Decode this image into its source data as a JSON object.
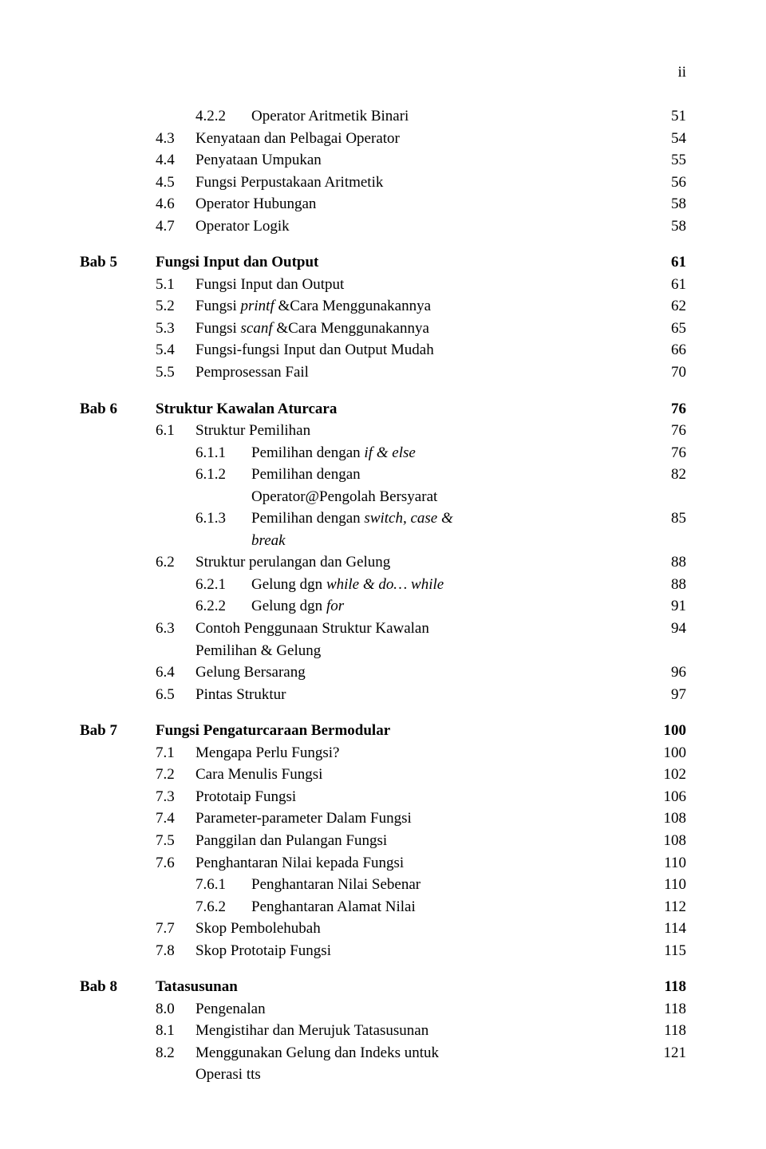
{
  "page_marker": "ii",
  "sections": [
    {
      "chapter": "",
      "title": "",
      "title_page": "",
      "items": [
        {
          "num": "4.2.2",
          "text": "Operator Aritmetik Binari",
          "page": "51",
          "level": 2
        },
        {
          "num": "4.3",
          "text": "Kenyataan dan Pelbagai Operator",
          "page": "54",
          "level": 1
        },
        {
          "num": "4.4",
          "text": "Penyataan Umpukan",
          "page": "55",
          "level": 1
        },
        {
          "num": "4.5",
          "text": "Fungsi Perpustakaan Aritmetik",
          "page": "56",
          "level": 1
        },
        {
          "num": "4.6",
          "text": "Operator Hubungan",
          "page": "58",
          "level": 1
        },
        {
          "num": "4.7",
          "text": "Operator Logik",
          "page": "58",
          "level": 1
        }
      ]
    },
    {
      "chapter": "Bab 5",
      "title": "Fungsi Input dan Output",
      "title_page": "61",
      "items": [
        {
          "num": "5.1",
          "text": "Fungsi Input dan Output",
          "page": "61",
          "level": 1
        },
        {
          "num": "5.2",
          "text_pre": "Fungsi ",
          "text_it": "printf",
          "text_post": " &Cara Menggunakannya",
          "page": "62",
          "level": 1
        },
        {
          "num": "5.3",
          "text_pre": "Fungsi ",
          "text_it": "scanf",
          "text_post": " &Cara Menggunakannya",
          "page": "65",
          "level": 1
        },
        {
          "num": "5.4",
          "text": "Fungsi-fungsi Input dan Output Mudah",
          "page": "66",
          "level": 1
        },
        {
          "num": "5.5",
          "text": "Pemprosessan Fail",
          "page": "70",
          "level": 1
        }
      ]
    },
    {
      "chapter": "Bab 6",
      "title": "Struktur Kawalan Aturcara",
      "title_page": "76",
      "items": [
        {
          "num": "6.1",
          "text": "Struktur Pemilihan",
          "page": "76",
          "level": 1
        },
        {
          "num": "6.1.1",
          "text_pre": "Pemilihan dengan ",
          "text_it": "if & else",
          "text_post": "",
          "page": "76",
          "level": 2
        },
        {
          "num": "6.1.2",
          "text": "Pemilihan dengan",
          "page": "82",
          "level": 2,
          "cont": "Operator@Pengolah Bersyarat"
        },
        {
          "num": "6.1.3",
          "text_pre": "Pemilihan dengan ",
          "text_it": "switch, case & break",
          "text_post": "",
          "page": "85",
          "level": 2,
          "multiline_italic": true
        },
        {
          "num": "6.2",
          "text": "Struktur perulangan dan Gelung",
          "page": "88",
          "level": 1
        },
        {
          "num": "6.2.1",
          "text_pre": "Gelung dgn ",
          "text_it": "while & do… while",
          "text_post": "",
          "page": "88",
          "level": 2
        },
        {
          "num": "6.2.2",
          "text_pre": "Gelung dgn ",
          "text_it": "for",
          "text_post": "",
          "page": "91",
          "level": 2
        },
        {
          "num": "6.3",
          "text": "Contoh Penggunaan Struktur Kawalan",
          "page": "94",
          "level": 1,
          "cont": "Pemilihan & Gelung"
        },
        {
          "num": "6.4",
          "text": "Gelung Bersarang",
          "page": "96",
          "level": 1
        },
        {
          "num": "6.5",
          "text": "Pintas Struktur",
          "page": "97",
          "level": 1
        }
      ]
    },
    {
      "chapter": "Bab 7",
      "title": "Fungsi Pengaturcaraan Bermodular",
      "title_page": "100",
      "items": [
        {
          "num": "7.1",
          "text": "Mengapa Perlu Fungsi?",
          "page": "100",
          "level": 1
        },
        {
          "num": "7.2",
          "text": "Cara Menulis Fungsi",
          "page": "102",
          "level": 1
        },
        {
          "num": "7.3",
          "text": "Prototaip Fungsi",
          "page": "106",
          "level": 1
        },
        {
          "num": "7.4",
          "text": "Parameter-parameter Dalam Fungsi",
          "page": "108",
          "level": 1
        },
        {
          "num": "7.5",
          "text": "Panggilan dan Pulangan Fungsi",
          "page": "108",
          "level": 1
        },
        {
          "num": "7.6",
          "text": "Penghantaran Nilai kepada Fungsi",
          "page": "110",
          "level": 1
        },
        {
          "num": "7.6.1",
          "text": "Penghantaran Nilai Sebenar",
          "page": "110",
          "level": 2
        },
        {
          "num": "7.6.2",
          "text": "Penghantaran Alamat Nilai",
          "page": "112",
          "level": 2
        },
        {
          "num": "7.7",
          "text": "Skop Pembolehubah",
          "page": "114",
          "level": 1
        },
        {
          "num": "7.8",
          "text": "Skop Prototaip Fungsi",
          "page": "115",
          "level": 1
        }
      ]
    },
    {
      "chapter": "Bab 8",
      "title": "Tatasusunan",
      "title_page": "118",
      "items": [
        {
          "num": "8.0",
          "text": "Pengenalan",
          "page": "118",
          "level": 1
        },
        {
          "num": "8.1",
          "text": "Mengistihar dan Merujuk Tatasusunan",
          "page": "118",
          "level": 1
        },
        {
          "num": "8.2",
          "text": "Menggunakan Gelung dan Indeks untuk",
          "page": "121",
          "level": 1,
          "cont": "Operasi tts"
        }
      ]
    }
  ]
}
